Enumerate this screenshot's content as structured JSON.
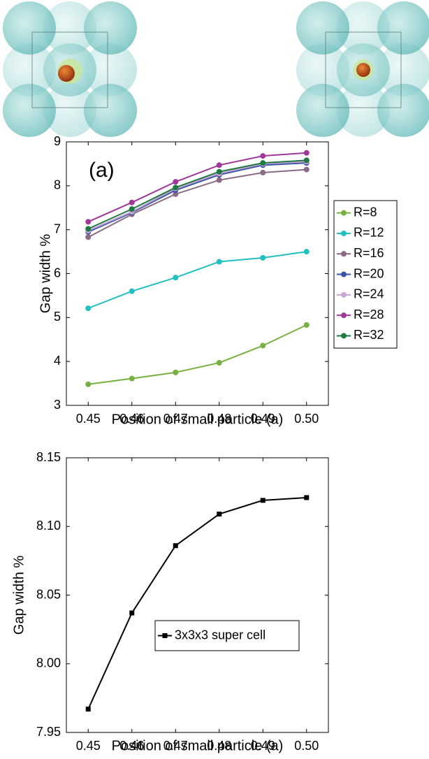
{
  "chart_data": [
    {
      "type": "line",
      "annotation": "(a)",
      "x_label": "Position of small particle (a)",
      "y_label": "Gap width %",
      "x": [
        0.45,
        0.46,
        0.47,
        0.48,
        0.49,
        0.5
      ],
      "xlim": [
        0.445,
        0.505
      ],
      "xticks": [
        0.45,
        0.46,
        0.47,
        0.48,
        0.49,
        {
          "value": 0.5,
          "label": "0.50"
        }
      ],
      "ylim": [
        3,
        9
      ],
      "yticks": [
        3,
        4,
        5,
        6,
        7,
        8,
        9
      ],
      "grid": false,
      "legend": "outside right",
      "marker": "circle",
      "series": [
        {
          "name": "R=8",
          "color": "#77b040",
          "values": [
            3.48,
            3.61,
            3.75,
            3.97,
            4.36,
            4.83
          ]
        },
        {
          "name": "R=12",
          "color": "#22bfc0",
          "values": [
            5.21,
            5.6,
            5.91,
            6.27,
            6.36,
            6.5
          ]
        },
        {
          "name": "R=16",
          "color": "#8a6a85",
          "values": [
            6.83,
            7.35,
            7.81,
            8.13,
            8.3,
            8.37
          ]
        },
        {
          "name": "R=20",
          "color": "#3a52a8",
          "values": [
            6.95,
            7.39,
            7.9,
            8.25,
            8.47,
            8.52
          ]
        },
        {
          "name": "R=24",
          "color": "#c9a6d3",
          "values": [
            6.98,
            7.41,
            7.94,
            8.28,
            8.5,
            8.55
          ]
        },
        {
          "name": "R=28",
          "color": "#a0389a",
          "values": [
            7.18,
            7.62,
            8.09,
            8.47,
            8.68,
            8.75
          ]
        },
        {
          "name": "R=32",
          "color": "#1e7a3e",
          "values": [
            7.02,
            7.47,
            7.96,
            8.32,
            8.52,
            8.58
          ]
        }
      ]
    },
    {
      "type": "line",
      "x_label": "Position of small particle (a)",
      "y_label": "Gap width %",
      "x": [
        0.45,
        0.46,
        0.47,
        0.48,
        0.49,
        0.5
      ],
      "xlim": [
        0.445,
        0.505
      ],
      "xticks": [
        0.45,
        0.46,
        0.47,
        0.48,
        0.49,
        {
          "value": 0.5,
          "label": "0.50"
        }
      ],
      "ylim": [
        7.95,
        8.15
      ],
      "yticks": [
        7.95,
        {
          "value": 8,
          "label": "8.00"
        },
        8.05,
        {
          "value": 8.1,
          "label": "8.10"
        },
        8.15
      ],
      "grid": false,
      "legend": "lower right",
      "marker": "square",
      "series": [
        {
          "name": "3x3x3 super cell",
          "color": "#000000",
          "values": [
            7.967,
            8.037,
            8.086,
            8.109,
            8.119,
            8.121
          ]
        }
      ]
    }
  ]
}
